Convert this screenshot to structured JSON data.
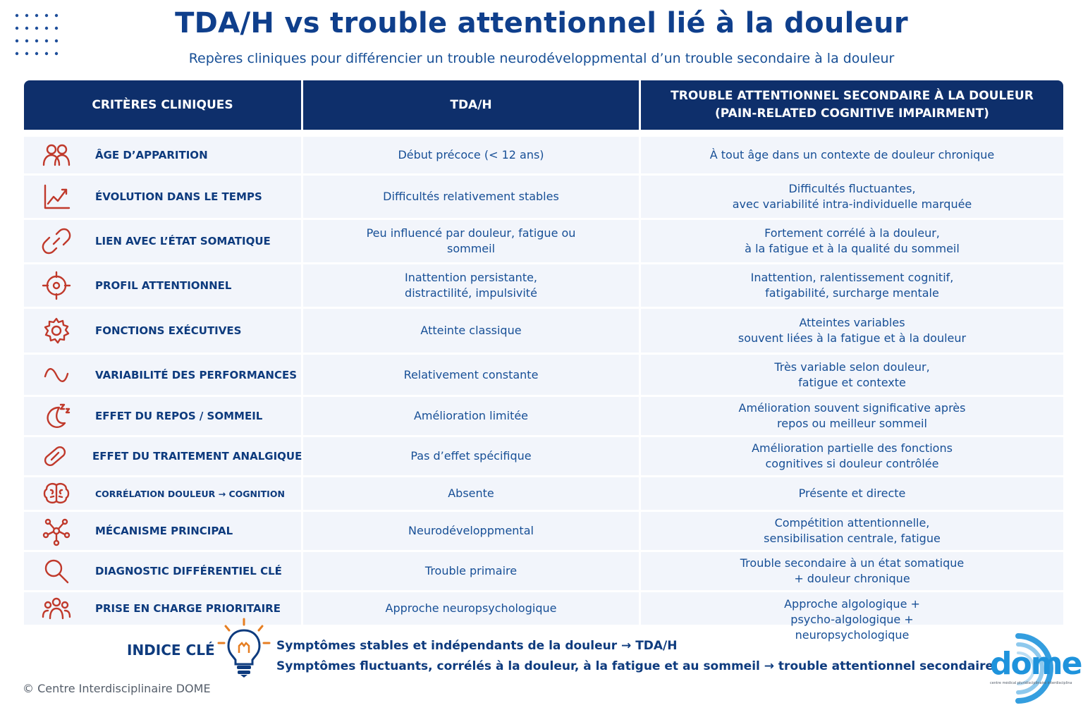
{
  "header": {
    "title": "TDA/H vs trouble attentionnel lié à la douleur",
    "subtitle": "Repères cliniques pour différencier un trouble neurodéveloppmental d’un trouble secondaire à la douleur"
  },
  "table": {
    "columns": [
      "CRITÈRES CLINIQUES",
      "TDA/H",
      "TROUBLE ATTENTIONNEL SECONDAIRE À LA DOULEUR",
      "(PAIN-RELATED COGNITIVE IMPAIRMENT)"
    ],
    "rows": [
      {
        "criterion": "ÂGE D’APPARITION",
        "icon": "people-icon",
        "tdah": [
          "Début précoce (< 12 ans)"
        ],
        "douleur": [
          "À tout âge dans un contexte de douleur chronique"
        ]
      },
      {
        "criterion": "ÉVOLUTION DANS LE TEMPS",
        "icon": "trend-chart-icon",
        "tdah": [
          "Difficultés relativement stables"
        ],
        "douleur": [
          "Difficultés fluctuantes,",
          "avec variabilité intra-individuelle marquée"
        ]
      },
      {
        "criterion": "LIEN AVEC L’ÉTAT SOMATIQUE",
        "icon": "link-icon",
        "tdah": [
          "Peu influencé par douleur, fatigue ou",
          "sommeil"
        ],
        "douleur": [
          "Fortement corrélé à la douleur,",
          "à la fatigue et à la qualité du sommeil"
        ]
      },
      {
        "criterion": "PROFIL ATTENTIONNEL",
        "icon": "target-icon",
        "tdah": [
          "Inattention persistante,",
          "distractilité, impulsivité"
        ],
        "douleur": [
          "Inattention, ralentissement cognitif,",
          "fatigabilité, surcharge mentale"
        ]
      },
      {
        "criterion": "FONCTIONS EXÉCUTIVES",
        "icon": "gear-icon",
        "tdah": [
          "Atteinte classique"
        ],
        "douleur": [
          "Atteintes variables",
          "souvent liées à la fatigue et à la douleur"
        ]
      },
      {
        "criterion": "VARIABILITÉ DES PERFORMANCES",
        "icon": "wave-icon",
        "tdah": [
          "Relativement constante"
        ],
        "douleur": [
          "Très variable selon douleur,",
          "fatigue et contexte"
        ]
      },
      {
        "criterion": "EFFET DU REPOS / SOMMEIL",
        "icon": "moon-icon",
        "tdah": [
          "Amélioration limitée"
        ],
        "douleur": [
          "Amélioration souvent significative après",
          "repos ou meilleur sommeil"
        ]
      },
      {
        "criterion": "EFFET DU TRAITEMENT ANALGIQUE",
        "icon": "pill-icon",
        "tdah": [
          "Pas d’effet spécifique"
        ],
        "douleur": [
          "Amélioration partielle des fonctions",
          "cognitives si douleur contrôlée"
        ]
      },
      {
        "criterion": "CORRÉLATION DOULEUR → COGNITION",
        "icon": "brain-icon",
        "tdah": [
          "Absente"
        ],
        "douleur": [
          "Présente et directe"
        ]
      },
      {
        "criterion": "MÉCANISME PRINCIPAL",
        "icon": "network-icon",
        "tdah": [
          "Neurodéveloppmental"
        ],
        "douleur": [
          "Compétition attentionnelle,",
          "sensibilisation centrale, fatigue"
        ]
      },
      {
        "criterion": "DIAGNOSTIC DIFFÉRENTIEL CLÉ",
        "icon": "search-icon",
        "tdah": [
          "Trouble primaire"
        ],
        "douleur": [
          "Trouble secondaire à un état somatique",
          "+ douleur chronique"
        ]
      },
      {
        "criterion": "PRISE EN CHARGE PRIORITAIRE",
        "icon": "group-icon",
        "tdah": [
          "Approche neuropsychologique"
        ],
        "douleur": [
          "Approche algologique +",
          "psycho-algologique +",
          "neuropsychologique"
        ]
      }
    ]
  },
  "key": {
    "label": "INDICE CLÉ",
    "icon": "lightbulb-icon",
    "lines": [
      "Symptômes stables et indépendants de la douleur → TDA/H",
      "Symptômes fluctuants, corrélés à la douleur, à la fatigue et au sommeil → trouble attentionnel secondaire"
    ]
  },
  "footer": {
    "copyright": "© Centre Interdisciplinaire DOME",
    "logo_text": "dome",
    "logo_tagline": "centre médical pluridisciplinaire interdisciplinaire"
  },
  "colors": {
    "navy": "#0e2f6b",
    "text_blue": "#174f96",
    "icon_red": "#c0392b",
    "row_bg": "#f2f5fb",
    "logo_blue": "#1e93dc"
  }
}
